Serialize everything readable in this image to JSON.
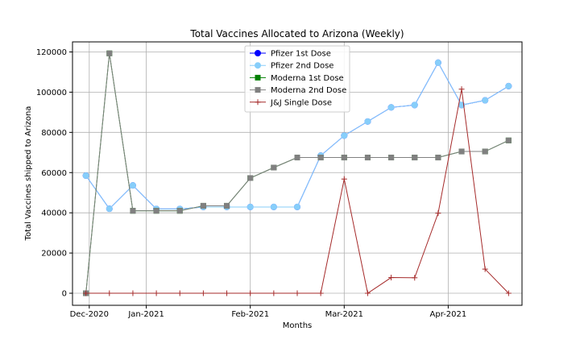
{
  "chart_data": {
    "type": "line",
    "title": "Total Vaccines Allocated to Arizona (Weekly)",
    "xlabel": "Months",
    "ylabel": "Total Vaccines shipped to Arizona",
    "x": [
      "2020-12-14",
      "2020-12-21",
      "2020-12-28",
      "2021-01-04",
      "2021-01-11",
      "2021-01-18",
      "2021-01-25",
      "2021-02-01",
      "2021-02-08",
      "2021-02-15",
      "2021-02-22",
      "2021-03-01",
      "2021-03-08",
      "2021-03-15",
      "2021-03-22",
      "2021-03-29",
      "2021-04-05",
      "2021-04-12",
      "2021-04-19"
    ],
    "xlim": [
      "2020-12-10",
      "2021-04-23"
    ],
    "x_ticks": [
      {
        "date": "2020-12-15",
        "label": "Dec-2020"
      },
      {
        "date": "2021-01-01",
        "label": "Jan-2021"
      },
      {
        "date": "2021-02-01",
        "label": "Feb-2021"
      },
      {
        "date": "2021-03-01",
        "label": "Mar-2021"
      },
      {
        "date": "2021-04-01",
        "label": "Apr-2021"
      }
    ],
    "ylim": [
      -6000,
      125000
    ],
    "y_ticks": [
      0,
      20000,
      40000,
      60000,
      80000,
      100000,
      120000
    ],
    "grid": true,
    "legend_position": "top-center",
    "series": [
      {
        "name": "Pfizer 1st Dose",
        "color": "#0000ff",
        "marker": "circle",
        "values": [
          58500,
          42000,
          53625,
          41925,
          41925,
          42900,
          42900,
          42900,
          42900,
          42900,
          68445,
          78390,
          85410,
          92430,
          93600,
          114660,
          93600,
          95940,
          103000
        ]
      },
      {
        "name": "Pfizer 2nd Dose",
        "color": "#87cefa",
        "marker": "circle",
        "values": [
          58500,
          42000,
          53625,
          41925,
          41925,
          42900,
          42900,
          42900,
          42900,
          42900,
          68445,
          78390,
          85410,
          92430,
          93600,
          114660,
          93600,
          95940,
          103000
        ]
      },
      {
        "name": "Moderna 1st Dose",
        "color": "#008000",
        "marker": "square",
        "values": [
          0,
          119300,
          41000,
          41000,
          41000,
          43500,
          43500,
          57300,
          62500,
          67500,
          67500,
          67500,
          67500,
          67500,
          67500,
          67500,
          70500,
          70500,
          76000
        ]
      },
      {
        "name": "Moderna 2nd Dose",
        "color": "#808080",
        "marker": "square",
        "values": [
          0,
          119300,
          41000,
          41000,
          41000,
          43500,
          43500,
          57300,
          62500,
          67500,
          67500,
          67500,
          67500,
          67500,
          67500,
          67500,
          70500,
          70500,
          76000
        ]
      },
      {
        "name": "J&J Single Dose",
        "color": "#a52a2a",
        "marker": "plus",
        "values": [
          0,
          0,
          0,
          0,
          0,
          0,
          0,
          0,
          0,
          0,
          0,
          56800,
          0,
          7800,
          7700,
          39800,
          101500,
          12000,
          0
        ]
      }
    ]
  }
}
